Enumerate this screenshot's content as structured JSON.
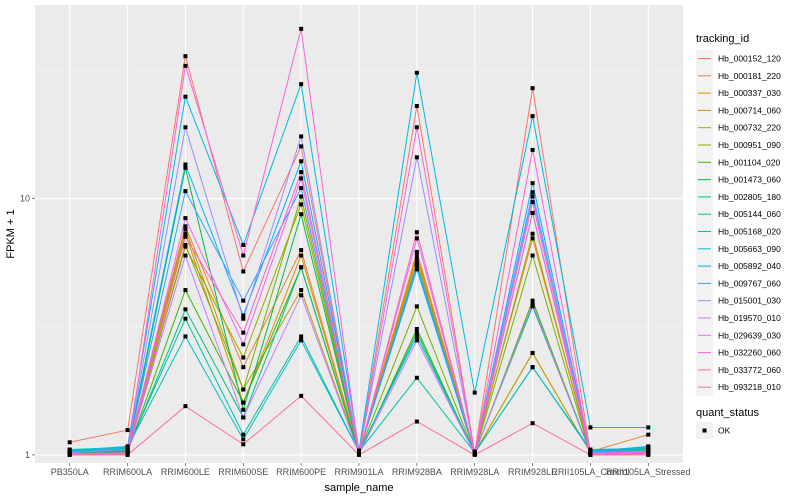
{
  "chart_data": {
    "type": "line",
    "title": "",
    "xlabel": "sample_name",
    "ylabel": "FPKM + 1",
    "y_scale": "log10",
    "ylim": [
      0.93,
      57
    ],
    "y_ticks": [
      1,
      10
    ],
    "y_tick_labels": [
      "1",
      "10"
    ],
    "grid": true,
    "categories": [
      "PB350LA",
      "RRIM600LA",
      "RRIM600LE",
      "RRIM600SE",
      "RRIM600PE",
      "RRIM901LA",
      "RRIM928BA",
      "RRIM928LA",
      "RRIM928LE",
      "RRII105LA_Control",
      "RRII105LA_Stressed"
    ],
    "legend": {
      "placement": "right",
      "color_title": "tracking_id",
      "shape_title": "quant_status",
      "shape_entries": [
        "OK"
      ]
    },
    "series": [
      {
        "name": "Hb_000152_120",
        "color": "#F8766D",
        "values": [
          1.12,
          1.25,
          36.0,
          5.2,
          16.0,
          1.02,
          23.0,
          1.02,
          27.0,
          1.02,
          1.05
        ]
      },
      {
        "name": "Hb_000181_220",
        "color": "#EA8331",
        "values": [
          1.03,
          1.05,
          7.8,
          2.2,
          6.3,
          1.03,
          6.2,
          1.03,
          7.0,
          1.03,
          1.2
        ]
      },
      {
        "name": "Hb_000337_030",
        "color": "#D89000",
        "values": [
          1.02,
          1.04,
          7.3,
          1.6,
          6.0,
          1.02,
          6.0,
          1.02,
          2.5,
          1.02,
          1.04
        ]
      },
      {
        "name": "Hb_000714_060",
        "color": "#C09B00",
        "values": [
          1.02,
          1.03,
          7.6,
          1.8,
          4.4,
          1.02,
          5.8,
          1.02,
          2.5,
          1.02,
          1.03
        ]
      },
      {
        "name": "Hb_000732_220",
        "color": "#A3A500",
        "values": [
          1.01,
          1.02,
          6.5,
          2.4,
          9.5,
          1.02,
          5.6,
          1.01,
          7.3,
          1.01,
          1.02
        ]
      },
      {
        "name": "Hb_000951_090",
        "color": "#7CAE00",
        "values": [
          1.01,
          1.02,
          6.6,
          1.8,
          10.2,
          1.02,
          3.8,
          1.01,
          6.0,
          1.01,
          1.02
        ]
      },
      {
        "name": "Hb_001104_020",
        "color": "#39B600",
        "values": [
          1.02,
          1.03,
          4.4,
          1.6,
          5.4,
          1.01,
          3.1,
          1.01,
          4.0,
          1.02,
          1.03
        ]
      },
      {
        "name": "Hb_001473_060",
        "color": "#00BB4E",
        "values": [
          1.02,
          1.03,
          13.2,
          1.5,
          8.7,
          1.02,
          5.5,
          1.01,
          8.8,
          1.02,
          1.05
        ]
      },
      {
        "name": "Hb_002805_180",
        "color": "#00BF7D",
        "values": [
          1.03,
          1.04,
          3.7,
          1.4,
          5.4,
          1.02,
          3.0,
          1.02,
          3.8,
          1.03,
          1.06
        ]
      },
      {
        "name": "Hb_005144_060",
        "color": "#00C1A3",
        "values": [
          1.04,
          1.06,
          3.4,
          1.2,
          2.9,
          1.03,
          2.0,
          1.02,
          2.2,
          1.04,
          1.07
        ]
      },
      {
        "name": "Hb_005168_020",
        "color": "#00BFC4",
        "values": [
          1.05,
          1.07,
          2.9,
          1.15,
          2.8,
          1.03,
          2.9,
          1.02,
          2.2,
          1.05,
          1.06
        ]
      },
      {
        "name": "Hb_005663_090",
        "color": "#00BAE0",
        "values": [
          1.04,
          1.08,
          25.0,
          6.6,
          28.0,
          1.04,
          31.0,
          1.75,
          21.0,
          1.28,
          1.28
        ]
      },
      {
        "name": "Hb_005892_040",
        "color": "#00B0F6",
        "values": [
          1.03,
          1.06,
          13.6,
          3.5,
          14.0,
          1.03,
          5.3,
          1.02,
          11.5,
          1.03,
          1.08
        ]
      },
      {
        "name": "Hb_009767_060",
        "color": "#35A2FF",
        "values": [
          1.03,
          1.05,
          10.7,
          4.0,
          11.0,
          1.03,
          5.5,
          1.03,
          10.2,
          1.03,
          1.04
        ]
      },
      {
        "name": "Hb_015001_030",
        "color": "#9590FF",
        "values": [
          1.02,
          1.05,
          19.0,
          3.4,
          17.5,
          1.02,
          14.5,
          1.02,
          10.6,
          1.02,
          1.03
        ]
      },
      {
        "name": "Hb_019570_010",
        "color": "#C77CFF",
        "values": [
          1.01,
          1.02,
          6.0,
          1.4,
          4.2,
          1.01,
          2.8,
          1.01,
          3.9,
          1.01,
          1.02
        ]
      },
      {
        "name": "Hb_029639_030",
        "color": "#E76BF3",
        "values": [
          1.01,
          1.02,
          8.4,
          2.7,
          12.0,
          1.01,
          7.0,
          1.01,
          8.8,
          1.01,
          1.03
        ]
      },
      {
        "name": "Hb_032260_060",
        "color": "#FA62DB",
        "values": [
          1.01,
          1.02,
          33.0,
          6.0,
          46.0,
          1.01,
          19.0,
          1.02,
          15.5,
          1.01,
          1.02
        ]
      },
      {
        "name": "Hb_033772_060",
        "color": "#FF62BC",
        "values": [
          1.0,
          1.01,
          7.1,
          3.0,
          12.7,
          1.01,
          7.4,
          1.01,
          9.7,
          1.0,
          1.01
        ]
      },
      {
        "name": "Hb_093218_010",
        "color": "#FF6C91",
        "values": [
          1.0,
          1.0,
          1.55,
          1.1,
          1.7,
          1.0,
          1.35,
          1.0,
          1.33,
          1.0,
          1.0
        ]
      }
    ]
  }
}
